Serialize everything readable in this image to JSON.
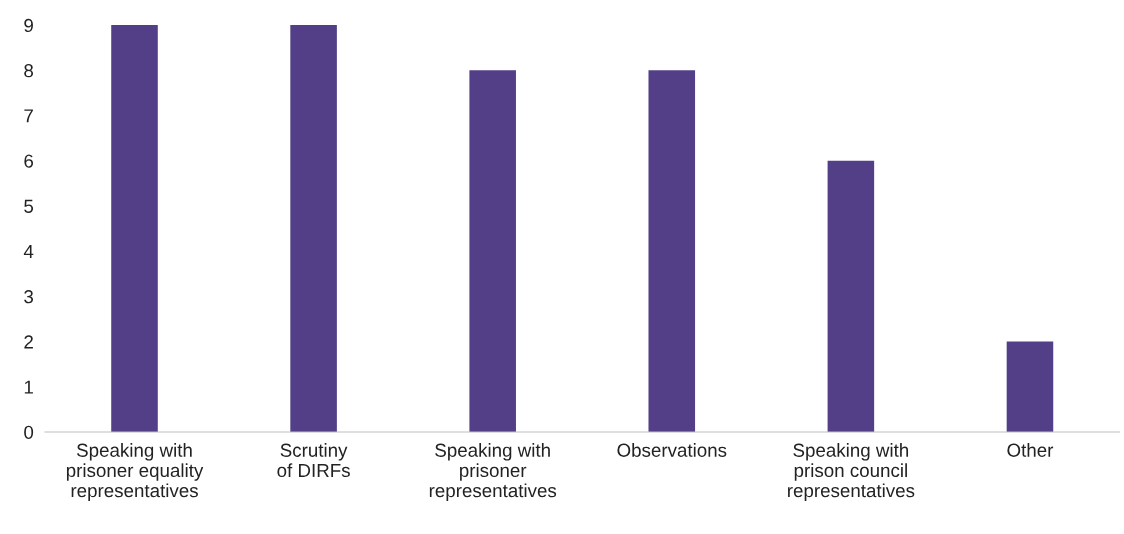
{
  "chart_data": {
    "type": "bar",
    "categories": [
      "Speaking with\nprisoner equality\nrepresentatives",
      "Scrutiny\nof DIRFs",
      "Speaking with\nprisoner\nrepresentatives",
      "Observations",
      "Speaking with\nprison council\nrepresentatives",
      "Other"
    ],
    "values": [
      9,
      9,
      8,
      8,
      6,
      2
    ],
    "color": "#523f87",
    "ylim": [
      0,
      9
    ],
    "yticks": [
      0,
      1,
      2,
      3,
      4,
      5,
      6,
      7,
      8,
      9
    ],
    "grid": false,
    "legend": false
  }
}
